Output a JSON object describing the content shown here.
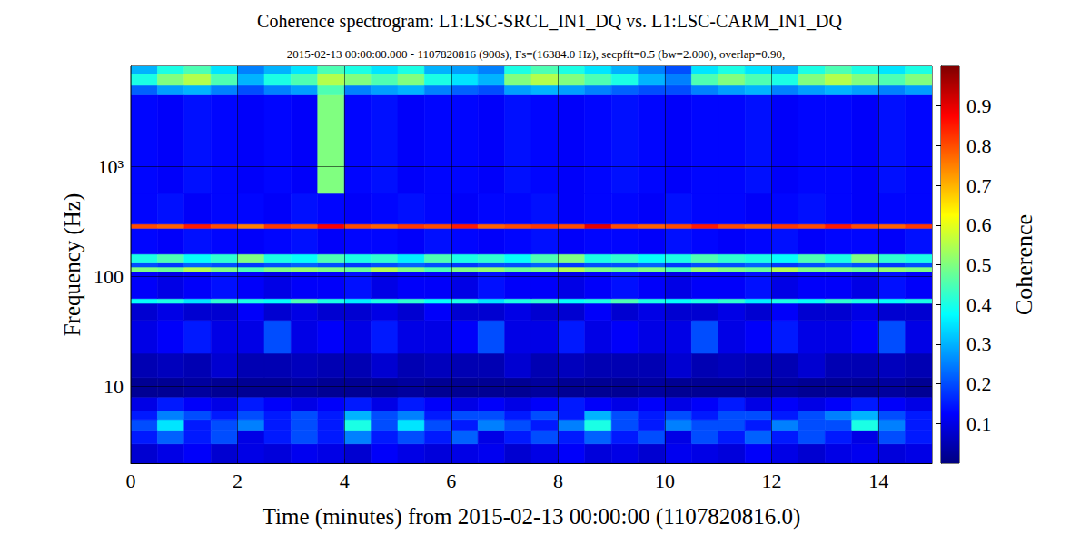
{
  "chart_data": {
    "type": "heatmap",
    "title": "Coherence spectrogram: L1:LSC-SRCL_IN1_DQ vs. L1:LSC-CARM_IN1_DQ",
    "subtitle": "2015-02-13 00:00:00.000 - 1107820816 (900s), Fs=(16384.0 Hz), secpfft=0.5 (bw=2.000), overlap=0.90,",
    "x_label": "Time (minutes) from 2015-02-13 00:00:00 (1107820816.0)",
    "y_label": "Frequency (Hz)",
    "xlim": [
      0,
      15
    ],
    "xticks": [
      0,
      2,
      4,
      6,
      8,
      10,
      12,
      14
    ],
    "ylim": [
      2,
      8192
    ],
    "yticks": [
      10,
      100,
      {
        "value": 1000,
        "label": "10³"
      }
    ],
    "log": "y",
    "grid": true,
    "time_edges": [
      0,
      0.5,
      1,
      1.5,
      2,
      2.5,
      3,
      3.5,
      4,
      4.5,
      5,
      5.5,
      6,
      6.5,
      7,
      7.5,
      8,
      8.5,
      9,
      9.5,
      10,
      10.5,
      11,
      11.5,
      12,
      12.5,
      13,
      13.5,
      14,
      14.5,
      15
    ],
    "frequency_edges": [
      2,
      3,
      4,
      5,
      6,
      8,
      12,
      20,
      40,
      57,
      63,
      110,
      122,
      135,
      160,
      275,
      300,
      570,
      4500,
      5500,
      7000,
      8192
    ],
    "coherence": [
      [
        0.08,
        0.1,
        0.12,
        0.08,
        0.1,
        0.09,
        0.11,
        0.1,
        0.08,
        0.12,
        0.1,
        0.09,
        0.1,
        0.11,
        0.08,
        0.1,
        0.12,
        0.09,
        0.1,
        0.08,
        0.11,
        0.1,
        0.09,
        0.12,
        0.1,
        0.08,
        0.1,
        0.11,
        0.09,
        0.1
      ],
      [
        0.15,
        0.22,
        0.15,
        0.2,
        0.1,
        0.15,
        0.2,
        0.15,
        0.25,
        0.15,
        0.2,
        0.15,
        0.22,
        0.1,
        0.15,
        0.2,
        0.15,
        0.22,
        0.15,
        0.2,
        0.1,
        0.2,
        0.15,
        0.22,
        0.15,
        0.2,
        0.15,
        0.1,
        0.2,
        0.15
      ],
      [
        0.2,
        0.35,
        0.15,
        0.2,
        0.25,
        0.15,
        0.2,
        0.15,
        0.4,
        0.2,
        0.35,
        0.2,
        0.15,
        0.25,
        0.2,
        0.15,
        0.25,
        0.4,
        0.2,
        0.15,
        0.25,
        0.2,
        0.2,
        0.15,
        0.25,
        0.2,
        0.2,
        0.4,
        0.25,
        0.15
      ],
      [
        0.15,
        0.25,
        0.2,
        0.15,
        0.2,
        0.15,
        0.2,
        0.15,
        0.3,
        0.2,
        0.25,
        0.15,
        0.2,
        0.2,
        0.15,
        0.2,
        0.15,
        0.3,
        0.2,
        0.15,
        0.2,
        0.15,
        0.2,
        0.2,
        0.15,
        0.2,
        0.25,
        0.3,
        0.2,
        0.15
      ],
      [
        0.1,
        0.15,
        0.12,
        0.1,
        0.15,
        0.12,
        0.1,
        0.12,
        0.15,
        0.1,
        0.15,
        0.12,
        0.1,
        0.12,
        0.1,
        0.12,
        0.15,
        0.12,
        0.1,
        0.12,
        0.1,
        0.12,
        0.15,
        0.1,
        0.12,
        0.1,
        0.12,
        0.15,
        0.12,
        0.1
      ],
      [
        0.02,
        0.02,
        0.03,
        0.02,
        0.02,
        0.02,
        0.03,
        0.02,
        0.02,
        0.02,
        0.03,
        0.02,
        0.02,
        0.02,
        0.02,
        0.03,
        0.02,
        0.02,
        0.02,
        0.03,
        0.02,
        0.02,
        0.02,
        0.02,
        0.03,
        0.02,
        0.02,
        0.02,
        0.03,
        0.02
      ],
      [
        0.05,
        0.06,
        0.05,
        0.08,
        0.05,
        0.05,
        0.06,
        0.05,
        0.05,
        0.08,
        0.05,
        0.06,
        0.05,
        0.05,
        0.08,
        0.05,
        0.06,
        0.05,
        0.05,
        0.05,
        0.08,
        0.05,
        0.06,
        0.05,
        0.05,
        0.08,
        0.05,
        0.05,
        0.06,
        0.05
      ],
      [
        0.1,
        0.12,
        0.15,
        0.1,
        0.1,
        0.2,
        0.1,
        0.12,
        0.1,
        0.15,
        0.1,
        0.1,
        0.12,
        0.2,
        0.1,
        0.1,
        0.15,
        0.1,
        0.12,
        0.1,
        0.1,
        0.2,
        0.1,
        0.12,
        0.15,
        0.1,
        0.1,
        0.12,
        0.2,
        0.1
      ],
      [
        0.08,
        0.1,
        0.08,
        0.08,
        0.12,
        0.08,
        0.1,
        0.08,
        0.08,
        0.1,
        0.08,
        0.12,
        0.08,
        0.08,
        0.1,
        0.08,
        0.08,
        0.12,
        0.08,
        0.1,
        0.08,
        0.08,
        0.1,
        0.08,
        0.12,
        0.08,
        0.08,
        0.1,
        0.08,
        0.08
      ],
      [
        0.38,
        0.4,
        0.35,
        0.42,
        0.4,
        0.38,
        0.45,
        0.4,
        0.36,
        0.4,
        0.42,
        0.38,
        0.4,
        0.35,
        0.4,
        0.42,
        0.38,
        0.4,
        0.45,
        0.4,
        0.38,
        0.4,
        0.42,
        0.36,
        0.4,
        0.38,
        0.42,
        0.4,
        0.38,
        0.4
      ],
      [
        0.12,
        0.1,
        0.12,
        0.14,
        0.12,
        0.1,
        0.12,
        0.12,
        0.14,
        0.1,
        0.12,
        0.12,
        0.1,
        0.14,
        0.12,
        0.12,
        0.1,
        0.12,
        0.14,
        0.12,
        0.1,
        0.12,
        0.12,
        0.14,
        0.1,
        0.12,
        0.12,
        0.1,
        0.14,
        0.12
      ],
      [
        0.5,
        0.48,
        0.55,
        0.5,
        0.45,
        0.5,
        0.52,
        0.5,
        0.48,
        0.55,
        0.5,
        0.45,
        0.5,
        0.52,
        0.48,
        0.5,
        0.55,
        0.5,
        0.48,
        0.5,
        0.45,
        0.52,
        0.5,
        0.48,
        0.55,
        0.5,
        0.5,
        0.48,
        0.52,
        0.5
      ],
      [
        0.2,
        0.18,
        0.22,
        0.2,
        0.18,
        0.2,
        0.22,
        0.2,
        0.18,
        0.2,
        0.22,
        0.2,
        0.18,
        0.2,
        0.2,
        0.22,
        0.18,
        0.2,
        0.2,
        0.22,
        0.18,
        0.2,
        0.2,
        0.22,
        0.18,
        0.2,
        0.22,
        0.2,
        0.18,
        0.2
      ],
      [
        0.4,
        0.45,
        0.38,
        0.42,
        0.5,
        0.4,
        0.38,
        0.45,
        0.4,
        0.42,
        0.36,
        0.45,
        0.4,
        0.42,
        0.38,
        0.45,
        0.5,
        0.4,
        0.42,
        0.38,
        0.4,
        0.45,
        0.42,
        0.4,
        0.38,
        0.45,
        0.4,
        0.5,
        0.42,
        0.4
      ],
      [
        0.13,
        0.12,
        0.14,
        0.13,
        0.12,
        0.13,
        0.14,
        0.12,
        0.13,
        0.13,
        0.12,
        0.14,
        0.13,
        0.12,
        0.13,
        0.14,
        0.12,
        0.13,
        0.13,
        0.12,
        0.14,
        0.13,
        0.12,
        0.13,
        0.14,
        0.12,
        0.13,
        0.13,
        0.12,
        0.14
      ],
      [
        0.8,
        0.78,
        0.85,
        0.8,
        0.75,
        0.82,
        0.8,
        0.88,
        0.8,
        0.78,
        0.82,
        0.8,
        0.85,
        0.78,
        0.8,
        0.82,
        0.8,
        0.9,
        0.8,
        0.78,
        0.8,
        0.85,
        0.8,
        0.78,
        0.82,
        0.8,
        0.85,
        0.8,
        0.78,
        0.82
      ],
      [
        0.13,
        0.14,
        0.12,
        0.13,
        0.13,
        0.12,
        0.14,
        0.13,
        0.12,
        0.13,
        0.14,
        0.13,
        0.12,
        0.13,
        0.13,
        0.14,
        0.12,
        0.13,
        0.13,
        0.12,
        0.14,
        0.13,
        0.13,
        0.12,
        0.13,
        0.14,
        0.13,
        0.12,
        0.13,
        0.13
      ],
      [
        0.13,
        0.12,
        0.14,
        0.13,
        0.12,
        0.13,
        0.12,
        0.5,
        0.13,
        0.14,
        0.12,
        0.13,
        0.13,
        0.12,
        0.14,
        0.13,
        0.12,
        0.13,
        0.14,
        0.13,
        0.12,
        0.13,
        0.13,
        0.14,
        0.12,
        0.13,
        0.13,
        0.12,
        0.14,
        0.13
      ],
      [
        0.22,
        0.28,
        0.3,
        0.25,
        0.2,
        0.25,
        0.28,
        0.45,
        0.25,
        0.28,
        0.3,
        0.25,
        0.22,
        0.2,
        0.28,
        0.3,
        0.28,
        0.25,
        0.22,
        0.2,
        0.2,
        0.25,
        0.28,
        0.3,
        0.25,
        0.28,
        0.3,
        0.28,
        0.25,
        0.28
      ],
      [
        0.4,
        0.5,
        0.55,
        0.45,
        0.3,
        0.4,
        0.45,
        0.55,
        0.5,
        0.45,
        0.5,
        0.4,
        0.35,
        0.3,
        0.5,
        0.55,
        0.5,
        0.45,
        0.4,
        0.3,
        0.25,
        0.45,
        0.5,
        0.45,
        0.4,
        0.5,
        0.55,
        0.5,
        0.45,
        0.5
      ],
      [
        0.3,
        0.4,
        0.45,
        0.35,
        0.25,
        0.3,
        0.35,
        0.45,
        0.4,
        0.35,
        0.4,
        0.3,
        0.28,
        0.25,
        0.4,
        0.45,
        0.4,
        0.35,
        0.3,
        0.25,
        0.2,
        0.35,
        0.4,
        0.35,
        0.3,
        0.4,
        0.45,
        0.4,
        0.35,
        0.4
      ]
    ],
    "colorbar": {
      "label": "Coherence",
      "range": [
        0,
        1
      ],
      "ticks": [
        0.1,
        0.2,
        0.3,
        0.4,
        0.5,
        0.6,
        0.7,
        0.8,
        0.9
      ]
    }
  }
}
